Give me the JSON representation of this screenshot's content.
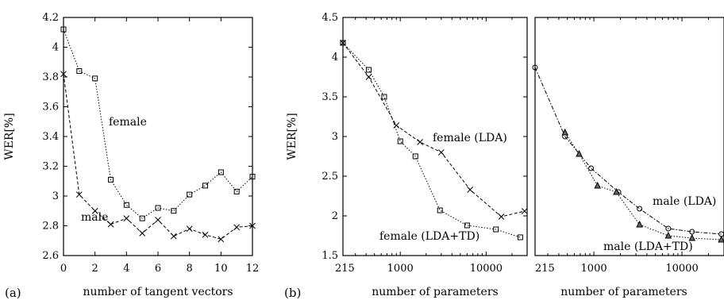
{
  "chart_data": [
    {
      "panel_label": "(a)",
      "type": "line",
      "xlabel": "number of tangent vectors",
      "ylabel": "WER[%]",
      "xlim": [
        0,
        12
      ],
      "ylim": [
        2.6,
        4.2
      ],
      "x_ticks": [
        0,
        2,
        4,
        6,
        8,
        10,
        12
      ],
      "y_ticks": [
        2.6,
        2.8,
        3,
        3.2,
        3.4,
        3.6,
        3.8,
        4,
        4.2
      ],
      "grid": false,
      "series": [
        {
          "name": "female",
          "marker": "square",
          "line": "dotted",
          "x": [
            0,
            1,
            2,
            3,
            4,
            5,
            6,
            7,
            8,
            9,
            10,
            11,
            12
          ],
          "y": [
            4.12,
            3.84,
            3.79,
            3.11,
            2.94,
            2.85,
            2.92,
            2.9,
            3.01,
            3.07,
            3.16,
            3.03,
            3.13
          ]
        },
        {
          "name": "male",
          "marker": "cross",
          "line": "dashed",
          "x": [
            0,
            1,
            2,
            3,
            4,
            5,
            6,
            7,
            8,
            9,
            10,
            11,
            12
          ],
          "y": [
            3.82,
            3.01,
            2.9,
            2.81,
            2.85,
            2.75,
            2.84,
            2.73,
            2.78,
            2.74,
            2.71,
            2.79,
            2.8
          ]
        }
      ]
    },
    {
      "panel_label": "(b)",
      "type": "line",
      "xlabel": "number of parameters",
      "ylabel": "WER[%]",
      "x_scale": "log",
      "xlim": [
        215,
        30000
      ],
      "ylim": [
        1.5,
        4.5
      ],
      "x_tick_labels": [
        "215",
        "1000",
        "10000"
      ],
      "x_ticks": [
        215,
        1000,
        10000
      ],
      "y_ticks": [
        1.5,
        2,
        2.5,
        3,
        3.5,
        4,
        4.5
      ],
      "grid": false,
      "series": [
        {
          "name": "female (LDA)",
          "marker": "cross",
          "line": "dashed",
          "x": [
            215,
            430,
            900,
            1700,
            3000,
            6500,
            15000,
            28000
          ],
          "y": [
            4.18,
            3.75,
            3.14,
            2.93,
            2.8,
            2.33,
            1.99,
            2.06
          ]
        },
        {
          "name": "female (LDA+TD)",
          "marker": "square",
          "line": "dotted",
          "x": [
            215,
            430,
            650,
            1000,
            1500,
            2900,
            6000,
            13000,
            25000
          ],
          "y": [
            4.18,
            3.84,
            3.5,
            2.94,
            2.75,
            2.07,
            1.88,
            1.83,
            1.73
          ]
        }
      ]
    },
    {
      "panel_label": "",
      "type": "line",
      "xlabel": "number of parameters",
      "ylabel": "",
      "x_scale": "log",
      "xlim": [
        215,
        30000
      ],
      "ylim": [
        1.5,
        4.5
      ],
      "x_tick_labels": [
        "215",
        "1000",
        "10000"
      ],
      "x_ticks": [
        215,
        1000,
        10000
      ],
      "grid": false,
      "series": [
        {
          "name": "male (LDA)",
          "marker": "circle",
          "line": "dashdot",
          "x": [
            215,
            470,
            930,
            1900,
            3300,
            7000,
            13000,
            28000
          ],
          "y": [
            3.87,
            3.0,
            2.6,
            2.3,
            2.09,
            1.84,
            1.8,
            1.77
          ]
        },
        {
          "name": "male (LDA+TD)",
          "marker": "triangle",
          "line": "dotted",
          "x": [
            470,
            680,
            1100,
            1800,
            3300,
            7000,
            13000,
            28000
          ],
          "y": [
            3.05,
            2.78,
            2.38,
            2.3,
            1.89,
            1.75,
            1.72,
            1.7
          ]
        }
      ]
    }
  ]
}
